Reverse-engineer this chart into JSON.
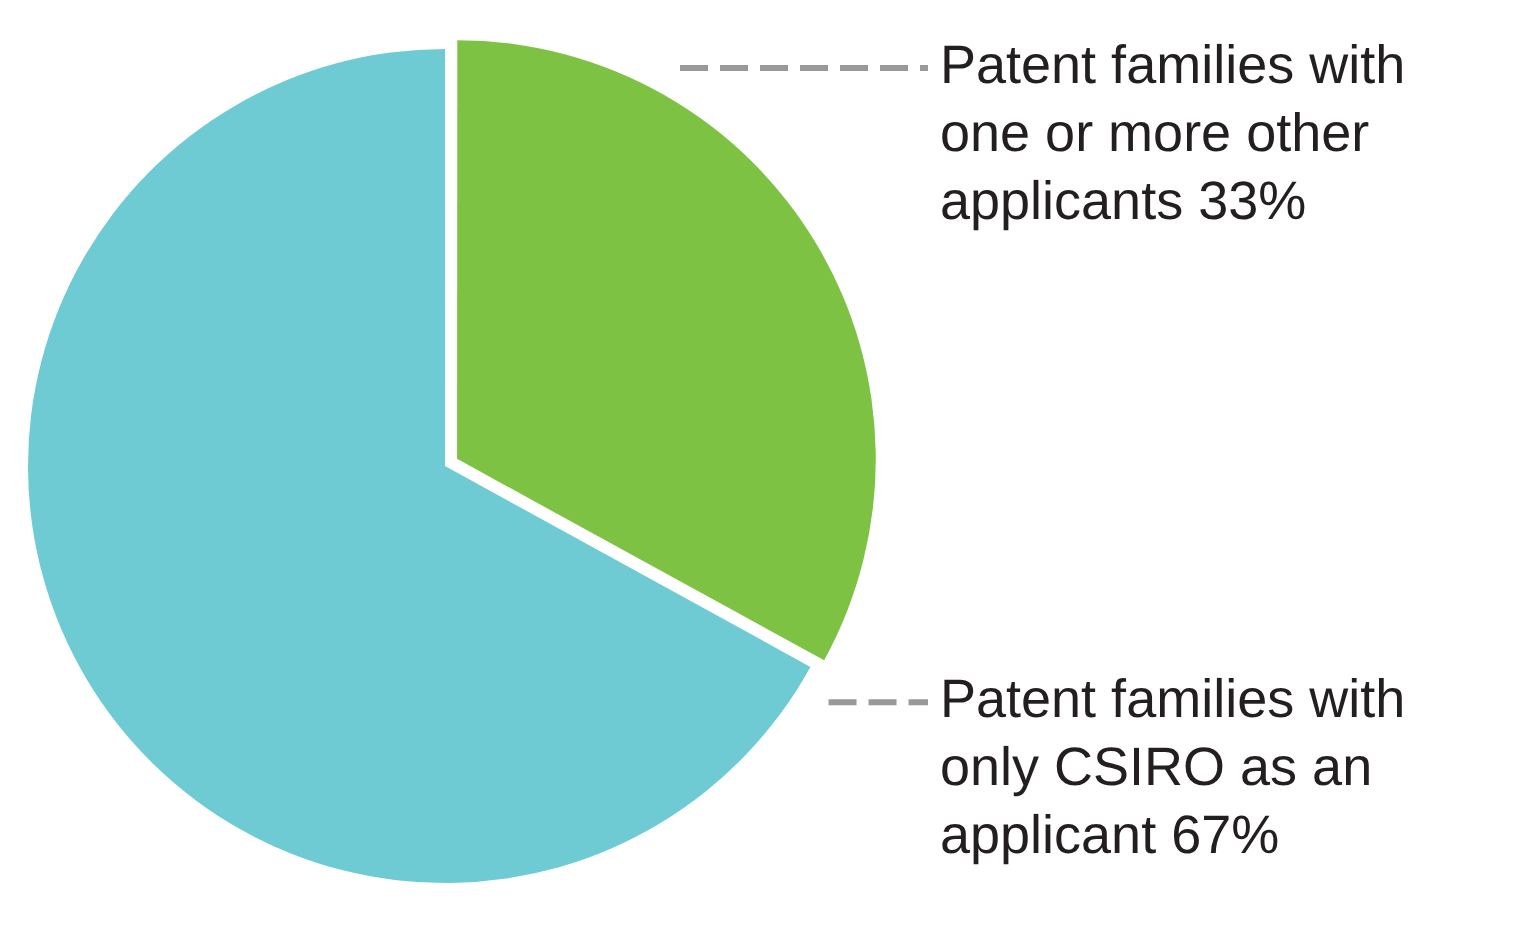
{
  "chart_data": {
    "type": "pie",
    "categories": [
      "Patent families with one or more other applicants",
      "Patent families with only CSIRO as an applicant"
    ],
    "values": [
      33,
      67
    ],
    "colors": [
      "#7dc242",
      "#6fcbd3"
    ],
    "value_labels": [
      "33%",
      "67%"
    ],
    "legend": false
  }
}
